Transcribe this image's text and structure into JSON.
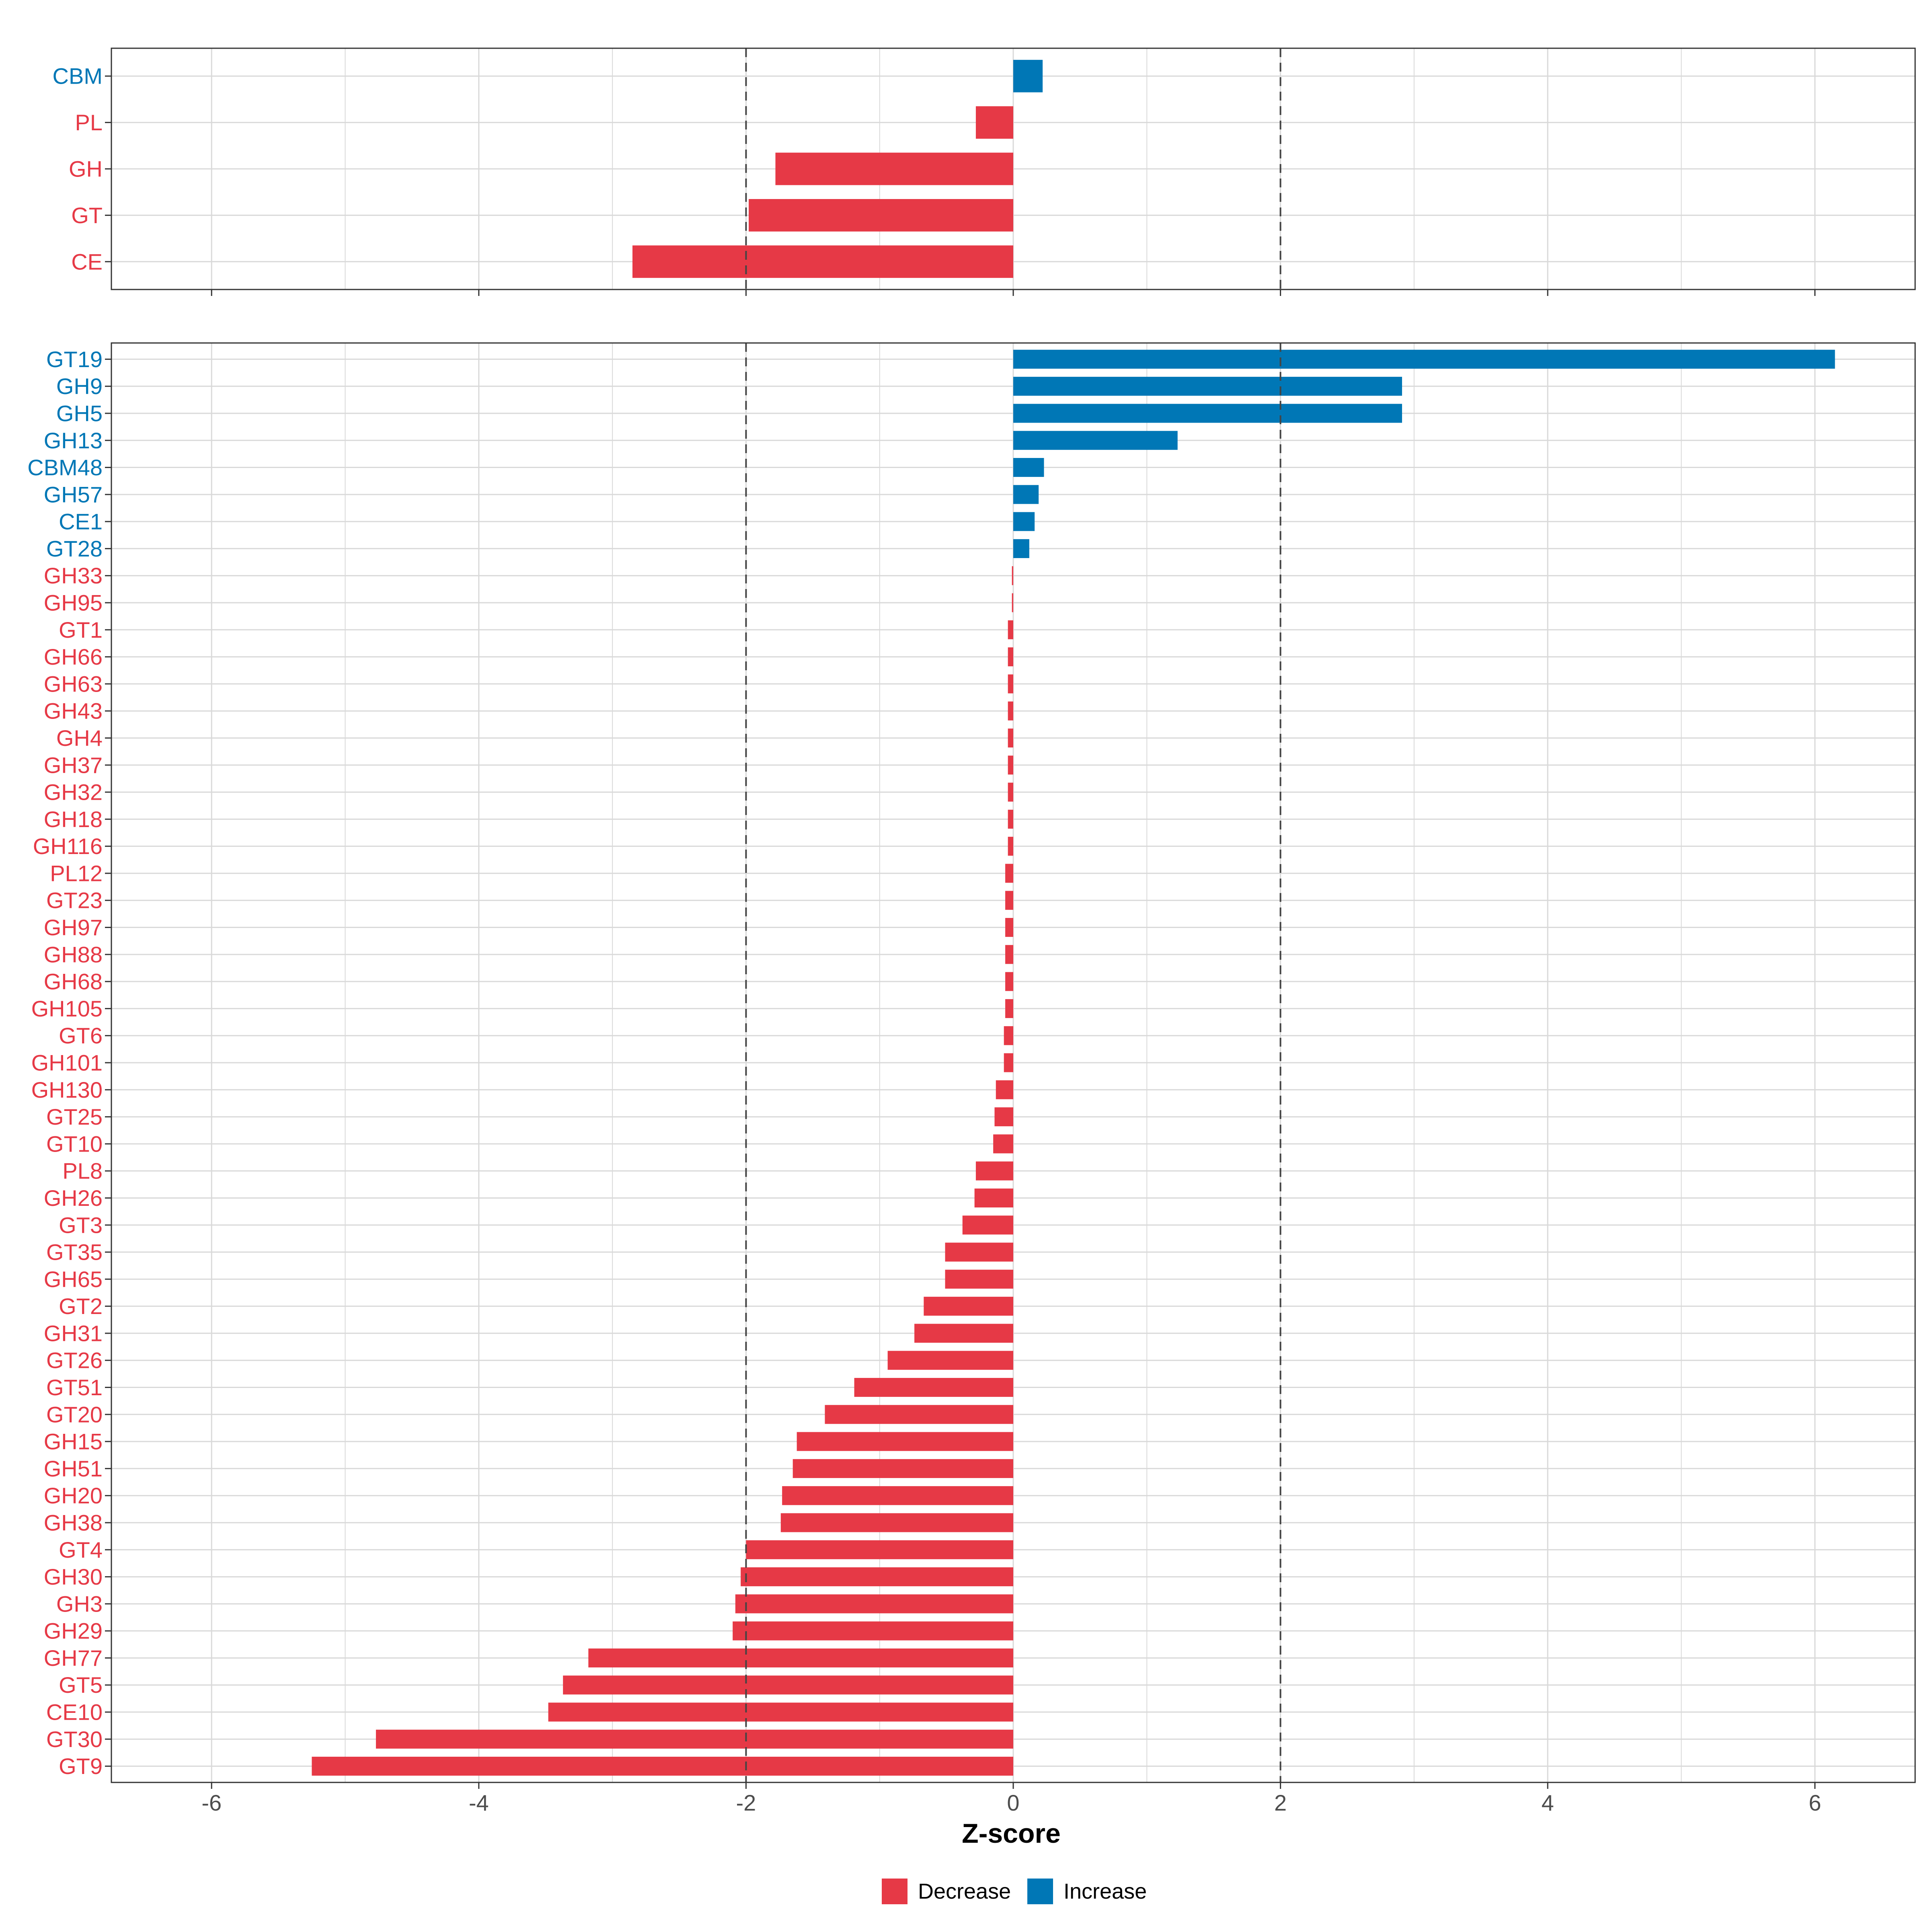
{
  "chart_data": [
    {
      "type": "bar",
      "orientation": "horizontal",
      "panel": "class-level",
      "categories": [
        "CBM",
        "PL",
        "GH",
        "GT",
        "CE"
      ],
      "values": [
        0.22,
        -0.28,
        -1.78,
        -1.98,
        -2.85
      ],
      "groups": [
        "Increase",
        "Decrease",
        "Decrease",
        "Decrease",
        "Decrease"
      ],
      "xlim": [
        -6.75,
        6.75
      ],
      "xticks": [
        "-6",
        "-4",
        "-2",
        "0",
        "2",
        "4",
        "6"
      ],
      "reference_lines": [
        -2,
        2
      ],
      "grid": true
    },
    {
      "type": "bar",
      "orientation": "horizontal",
      "panel": "family-level",
      "categories": [
        "GT19",
        "GH9",
        "GH5",
        "GH13",
        "CBM48",
        "GH57",
        "CE1",
        "GT28",
        "GH33",
        "GH95",
        "GT1",
        "GH66",
        "GH63",
        "GH43",
        "GH4",
        "GH37",
        "GH32",
        "GH18",
        "GH116",
        "PL12",
        "GT23",
        "GH97",
        "GH88",
        "GH68",
        "GH105",
        "GT6",
        "GH101",
        "GH130",
        "GT25",
        "GT10",
        "PL8",
        "GH26",
        "GT3",
        "GT35",
        "GH65",
        "GT2",
        "GH31",
        "GT26",
        "GT51",
        "GT20",
        "GH15",
        "GH51",
        "GH20",
        "GH38",
        "GT4",
        "GH30",
        "GH3",
        "GH29",
        "GH77",
        "GT5",
        "CE10",
        "GT30",
        "GT9"
      ],
      "values": [
        6.15,
        2.91,
        2.91,
        1.23,
        0.23,
        0.19,
        0.16,
        0.12,
        -0.01,
        -0.01,
        -0.04,
        -0.04,
        -0.04,
        -0.04,
        -0.04,
        -0.04,
        -0.04,
        -0.04,
        -0.04,
        -0.06,
        -0.06,
        -0.06,
        -0.06,
        -0.06,
        -0.06,
        -0.07,
        -0.07,
        -0.13,
        -0.14,
        -0.15,
        -0.28,
        -0.29,
        -0.38,
        -0.51,
        -0.51,
        -0.67,
        -0.74,
        -0.94,
        -1.19,
        -1.41,
        -1.62,
        -1.65,
        -1.73,
        -1.74,
        -2.0,
        -2.04,
        -2.08,
        -2.1,
        -3.18,
        -3.37,
        -3.48,
        -4.77,
        -5.25
      ],
      "groups": [
        "Increase",
        "Increase",
        "Increase",
        "Increase",
        "Increase",
        "Increase",
        "Increase",
        "Increase",
        "Decrease",
        "Decrease",
        "Decrease",
        "Decrease",
        "Decrease",
        "Decrease",
        "Decrease",
        "Decrease",
        "Decrease",
        "Decrease",
        "Decrease",
        "Decrease",
        "Decrease",
        "Decrease",
        "Decrease",
        "Decrease",
        "Decrease",
        "Decrease",
        "Decrease",
        "Decrease",
        "Decrease",
        "Decrease",
        "Decrease",
        "Decrease",
        "Decrease",
        "Decrease",
        "Decrease",
        "Decrease",
        "Decrease",
        "Decrease",
        "Decrease",
        "Decrease",
        "Decrease",
        "Decrease",
        "Decrease",
        "Decrease",
        "Decrease",
        "Decrease",
        "Decrease",
        "Decrease",
        "Decrease",
        "Decrease",
        "Decrease",
        "Decrease",
        "Decrease"
      ],
      "xlim": [
        -6.75,
        6.75
      ],
      "xticks": [
        "-6",
        "-4",
        "-2",
        "0",
        "2",
        "4",
        "6"
      ],
      "reference_lines": [
        -2,
        2
      ],
      "grid": true
    }
  ],
  "xlabel": "Z-score",
  "legend": {
    "position": "bottom",
    "entries": [
      {
        "label": "Decrease",
        "color": "#e63946"
      },
      {
        "label": "Increase",
        "color": "#0077b6"
      }
    ]
  },
  "colors": {
    "Decrease": "#e63946",
    "Increase": "#0077b6",
    "grid": "#d9d9d9",
    "frame": "#333333",
    "reference_line": "#444444",
    "tick_text": "#4d4d4d"
  }
}
